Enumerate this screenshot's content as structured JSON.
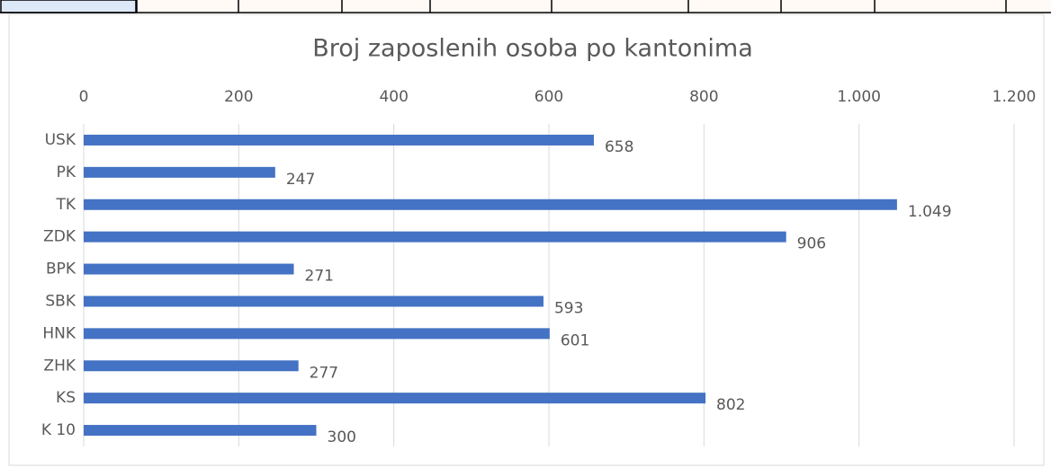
{
  "chart_data": {
    "type": "hbar",
    "title": "Broj zaposlenih osoba po kantonima",
    "categories": [
      "USK",
      "PK",
      "TK",
      "ZDK",
      "BPK",
      "SBK",
      "HNK",
      "ZHK",
      "KS",
      "K 10"
    ],
    "values": [
      658,
      247,
      1049,
      906,
      271,
      593,
      601,
      277,
      802,
      300
    ],
    "value_labels": [
      "658",
      "247",
      "1.049",
      "906",
      "271",
      "593",
      "601",
      "277",
      "802",
      "300"
    ],
    "color": "#4472c4",
    "xlim": [
      0,
      1200
    ],
    "xticks": [
      0,
      200,
      400,
      600,
      800,
      {
        "value": 1000,
        "label": "1.000"
      },
      {
        "value": 1200,
        "label": "1.200"
      }
    ],
    "grid": true
  }
}
